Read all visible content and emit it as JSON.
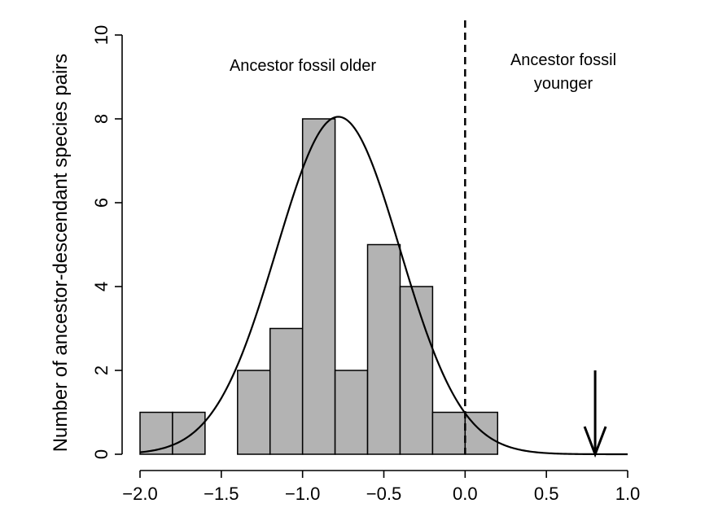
{
  "chart_data": {
    "type": "bar",
    "subtype": "histogram",
    "ylabel": "Number of ancestor-descendant species pairs",
    "xlabel": "",
    "xlim": [
      -2.0,
      1.0
    ],
    "ylim": [
      0,
      10
    ],
    "x_ticks": [
      -2.0,
      -1.5,
      -1.0,
      -0.5,
      0.0,
      0.5,
      1.0
    ],
    "x_tick_labels": [
      "−2.0",
      "−1.5",
      "−1.0",
      "−0.5",
      "0.0",
      "0.5",
      "1.0"
    ],
    "y_ticks": [
      0,
      2,
      4,
      6,
      8,
      10
    ],
    "y_tick_labels": [
      "0",
      "2",
      "4",
      "6",
      "8",
      "10"
    ],
    "bin_width": 0.2,
    "bins": [
      {
        "start": -2.0,
        "end": -1.8,
        "count": 1
      },
      {
        "start": -1.8,
        "end": -1.6,
        "count": 1
      },
      {
        "start": -1.6,
        "end": -1.4,
        "count": 0
      },
      {
        "start": -1.4,
        "end": -1.2,
        "count": 2
      },
      {
        "start": -1.2,
        "end": -1.0,
        "count": 3
      },
      {
        "start": -1.0,
        "end": -0.8,
        "count": 8
      },
      {
        "start": -0.8,
        "end": -0.6,
        "count": 2
      },
      {
        "start": -0.6,
        "end": -0.4,
        "count": 5
      },
      {
        "start": -0.4,
        "end": -0.2,
        "count": 4
      },
      {
        "start": -0.2,
        "end": 0.0,
        "count": 1
      },
      {
        "start": 0.0,
        "end": 0.2,
        "count": 1
      }
    ],
    "curve": {
      "type": "normal",
      "mean": -0.78,
      "sd": 0.38,
      "peak": 8.05,
      "x_range": [
        -2.0,
        1.0
      ]
    },
    "vline": {
      "x": 0.0,
      "style": "dashed"
    },
    "arrow": {
      "x": 0.8,
      "from_y": 2.0,
      "to_y": 0.0
    },
    "annotations": {
      "left": "Ancestor fossil older",
      "right_line1": "Ancestor fossil",
      "right_line2": "younger"
    },
    "colors": {
      "bar_fill": "#b3b3b3",
      "bar_stroke": "#000000",
      "line": "#000000"
    },
    "grid": false,
    "legend": "none"
  }
}
